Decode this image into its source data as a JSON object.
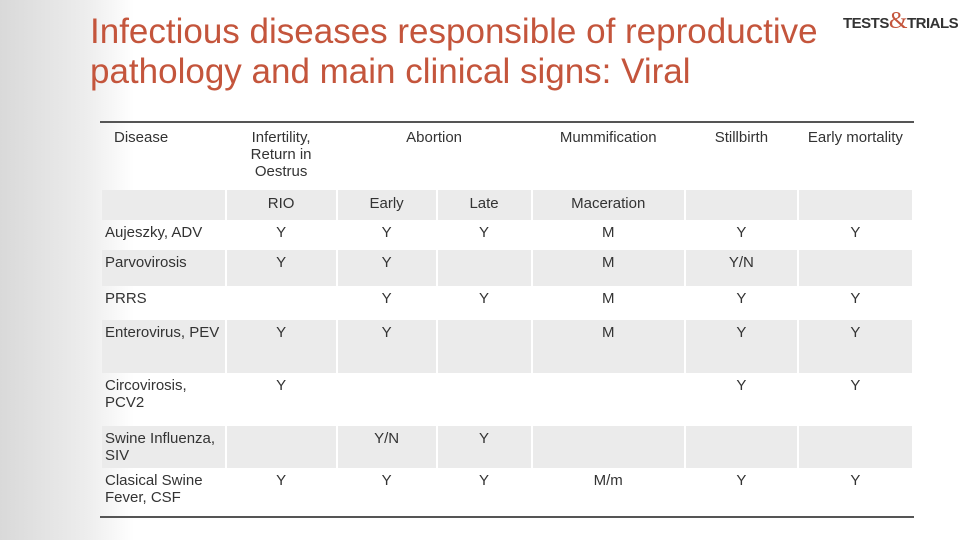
{
  "title": "Infectious diseases responsible of reproductive pathology and main clinical signs: Viral",
  "logo": {
    "left": "TESTS",
    "amp": "&",
    "right": "TRIALS"
  },
  "table": {
    "header": [
      "Disease",
      "Infertility, Return in Oestrus",
      "Abortion",
      "Mummification",
      "Stillbirth",
      "Early mortality"
    ],
    "subheader": [
      null,
      "RIO",
      "Early",
      "Late",
      "Maceration",
      null,
      null
    ],
    "rows": [
      [
        "Aujeszky, ADV",
        "Y",
        "Y",
        "Y",
        "M",
        "Y",
        "Y"
      ],
      [
        "Parvovirosis",
        "Y",
        "Y",
        null,
        "M",
        "Y/N",
        null
      ],
      [
        "PRRS",
        null,
        "Y",
        "Y",
        "M",
        "Y",
        "Y"
      ],
      [
        "Enterovirus, PEV",
        "Y",
        "Y",
        null,
        "M",
        "Y",
        "Y"
      ],
      [
        "Circovirosis, PCV2",
        "Y",
        null,
        null,
        null,
        "Y",
        "Y"
      ],
      [
        "Swine Influenza, SIV",
        null,
        "Y/N",
        "Y",
        null,
        null,
        null
      ],
      [
        "Clasical Swine Fever, CSF",
        "Y",
        "Y",
        "Y",
        "M/m",
        "Y",
        "Y"
      ]
    ]
  }
}
